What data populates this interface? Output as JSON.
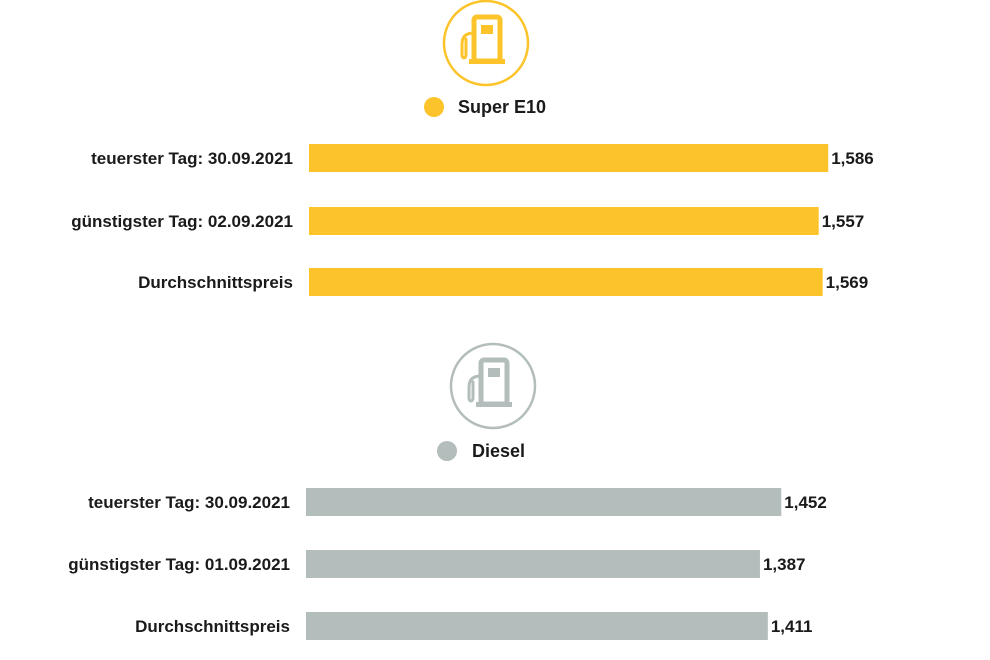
{
  "chart_data": [
    {
      "type": "bar",
      "orientation": "horizontal",
      "icon": "fuel-pump-icon",
      "legend": "Super E10",
      "color": "#fcc42a",
      "categories": [
        "teuerster Tag: 30.09.2021",
        "günstigster Tag: 02.09.2021",
        "Durchschnittspreis"
      ],
      "values": [
        1.586,
        1.557,
        1.569
      ],
      "value_labels": [
        "1,586",
        "1,557",
        "1,569"
      ],
      "grid": false,
      "legend_position": "top-center"
    },
    {
      "type": "bar",
      "orientation": "horizontal",
      "icon": "fuel-pump-icon",
      "legend": "Diesel",
      "color": "#b3bdbb",
      "categories": [
        "teuerster Tag: 30.09.2021",
        "günstigster Tag: 01.09.2021",
        "Durchschnittspreis"
      ],
      "values": [
        1.452,
        1.387,
        1.411
      ],
      "value_labels": [
        "1,452",
        "1,387",
        "1,411"
      ],
      "grid": false,
      "legend_position": "top-center"
    }
  ]
}
